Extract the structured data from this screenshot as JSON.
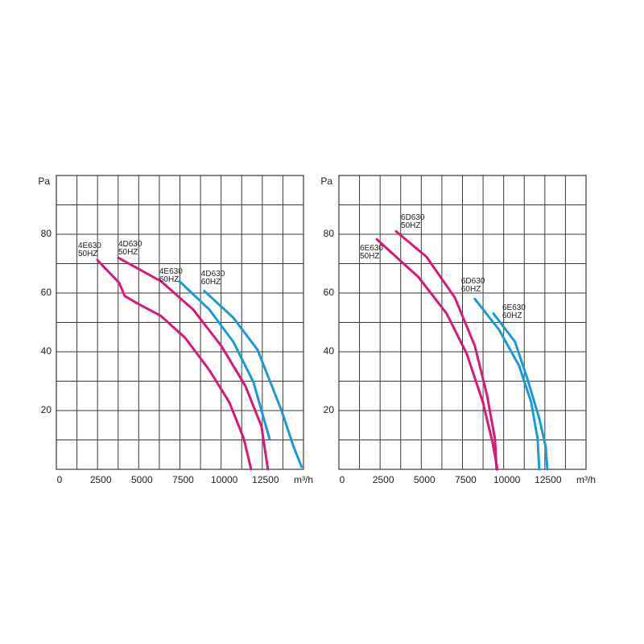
{
  "chart_data": [
    {
      "type": "line",
      "y_label": "Pa",
      "x_label": "m³/h",
      "xlim": [
        0,
        15000
      ],
      "ylim": [
        0,
        100
      ],
      "xticks": [
        0,
        2500,
        5000,
        7500,
        10000,
        12500
      ],
      "yticks": [
        20,
        40,
        60,
        80
      ],
      "xgrid": [
        0,
        1250,
        2500,
        3750,
        5000,
        6250,
        7500,
        8750,
        10000,
        11250,
        12500,
        13750,
        15000
      ],
      "ygrid": [
        0,
        10,
        20,
        30,
        40,
        50,
        60,
        70,
        80,
        90,
        100
      ],
      "series": [
        {
          "name": "4E630",
          "freq": "50HZ",
          "color": "#d6197a",
          "x": [
            2490,
            3810,
            4150,
            4880,
            6350,
            7810,
            9280,
            10500,
            11380,
            11820
          ],
          "values": [
            71.2,
            63.5,
            59,
            56.6,
            52.2,
            44.8,
            33.8,
            22.8,
            10.4,
            0
          ]
        },
        {
          "name": "4D630",
          "freq": "50HZ",
          "color": "#d6197a",
          "x": [
            3760,
            6350,
            8300,
            10010,
            11480,
            12450,
            12840
          ],
          "values": [
            72,
            64,
            54.4,
            42,
            28.3,
            14.6,
            0
          ]
        },
        {
          "name": "4E630",
          "freq": "60HZ",
          "color": "#1a9ad6",
          "x": [
            7470,
            9280,
            10740,
            11960,
            12940
          ],
          "values": [
            64,
            54.4,
            43.4,
            29.7,
            10.4
          ]
        },
        {
          "name": "4D630",
          "freq": "60HZ",
          "color": "#1a9ad6",
          "x": [
            8980,
            10740,
            12210,
            13670,
            14400,
            14890
          ],
          "values": [
            60.7,
            51.6,
            40.7,
            20,
            7.7,
            0.8
          ]
        }
      ]
    },
    {
      "type": "line",
      "y_label": "Pa",
      "x_label": "m³/h",
      "xlim": [
        0,
        15000
      ],
      "ylim": [
        0,
        100
      ],
      "xticks": [
        0,
        2500,
        5000,
        7500,
        10000,
        12500
      ],
      "yticks": [
        20,
        40,
        60,
        80
      ],
      "xgrid": [
        0,
        1250,
        2500,
        3750,
        5000,
        6250,
        7500,
        8750,
        10000,
        11250,
        12500,
        13750,
        15000
      ],
      "ygrid": [
        0,
        10,
        20,
        30,
        40,
        50,
        60,
        70,
        80,
        90,
        100
      ],
      "series": [
        {
          "name": "6D630",
          "freq": "50HZ",
          "color": "#d6197a",
          "x": [
            3470,
            5320,
            7030,
            8250,
            8980,
            9470,
            9570
          ],
          "values": [
            81,
            72.3,
            58.5,
            42,
            25.5,
            10.4,
            0
          ]
        },
        {
          "name": "6E630",
          "freq": "50HZ",
          "color": "#d6197a",
          "x": [
            2300,
            4830,
            6540,
            7760,
            8740,
            9330,
            9620
          ],
          "values": [
            78.3,
            65.4,
            53,
            39.3,
            22.8,
            9,
            0
          ]
        },
        {
          "name": "6D630",
          "freq": "60HZ",
          "color": "#1a9ad6",
          "x": [
            8250,
            9720,
            10940,
            11670,
            12060,
            12160
          ],
          "values": [
            58,
            47.5,
            35.2,
            22.8,
            10.4,
            0
          ]
        },
        {
          "name": "6E630",
          "freq": "60HZ",
          "color": "#1a9ad6",
          "x": [
            9380,
            10690,
            11430,
            12160,
            12550,
            12650
          ],
          "values": [
            53,
            43.4,
            31,
            17.3,
            7.7,
            0
          ]
        }
      ]
    }
  ]
}
